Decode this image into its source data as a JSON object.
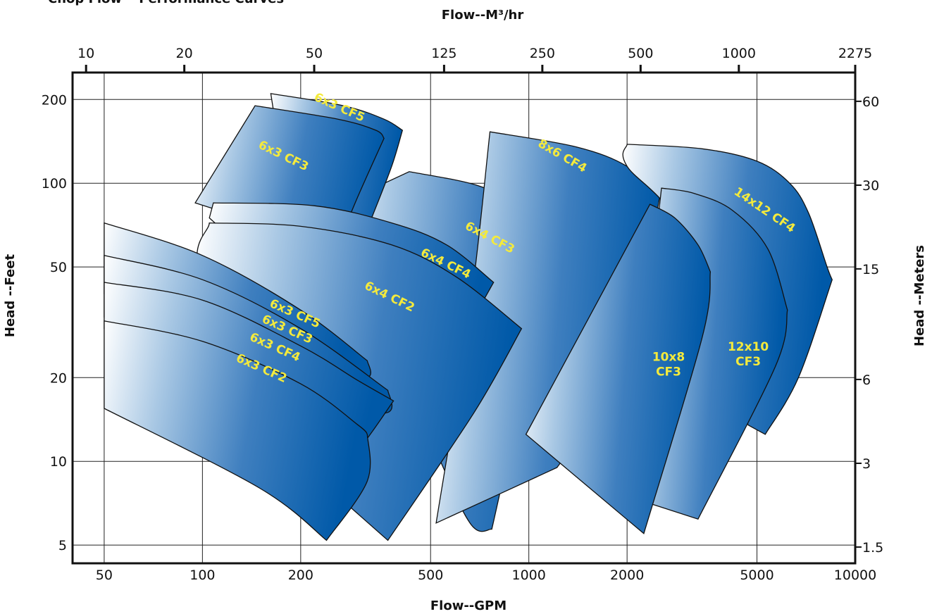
{
  "chart_data": {
    "type": "area",
    "title": "Chop Flow™ Performance Curves",
    "x_bottom": {
      "label": "Flow--GPM",
      "scale": "log",
      "range": [
        40,
        10000
      ],
      "ticks": [
        50,
        100,
        200,
        500,
        1000,
        2000,
        5000,
        10000
      ]
    },
    "x_top": {
      "label": "Flow--M³/hr",
      "ticks": [
        {
          "label": "10",
          "gpm": 44
        },
        {
          "label": "20",
          "gpm": 88
        },
        {
          "label": "50",
          "gpm": 220
        },
        {
          "label": "125",
          "gpm": 550
        },
        {
          "label": "250",
          "gpm": 1100
        },
        {
          "label": "500",
          "gpm": 2200
        },
        {
          "label": "1000",
          "gpm": 4400
        },
        {
          "label": "2275",
          "gpm": 10000
        }
      ]
    },
    "y_left": {
      "label": "Head --Feet",
      "scale": "log",
      "range": [
        4.3,
        250
      ],
      "ticks": [
        5,
        10,
        20,
        50,
        100,
        200
      ]
    },
    "y_right": {
      "label": "Head --Meters",
      "ticks": [
        {
          "label": "1.5",
          "ft": 4.92
        },
        {
          "label": "3",
          "ft": 9.84
        },
        {
          "label": "6",
          "ft": 19.7
        },
        {
          "label": "15",
          "ft": 49.2
        },
        {
          "label": "30",
          "ft": 98.4
        },
        {
          "label": "60",
          "ft": 197
        }
      ]
    },
    "grid": true,
    "series": [
      {
        "name": "6x4 CF3",
        "label_lines": [
          "6x4 CF3"
        ],
        "label_at": [
          750,
          62
        ],
        "label_angle": 28,
        "top": [
          [
            430,
            110
          ],
          [
            700,
            98
          ],
          [
            1000,
            80
          ],
          [
            1300,
            68
          ],
          [
            1500,
            61
          ]
        ],
        "right": [
          [
            1500,
            61
          ],
          [
            1270,
            40
          ],
          [
            1050,
            27
          ],
          [
            770,
            5.7
          ]
        ],
        "bottom": [
          [
            770,
            5.7
          ],
          [
            660,
            6.0
          ],
          [
            500,
            12
          ],
          [
            240,
            80
          ]
        ],
        "left": [
          [
            240,
            80
          ],
          [
            430,
            110
          ]
        ]
      },
      {
        "name": "6x3 CF5",
        "label_lines": [
          "6x3 CF5"
        ],
        "label_at": [
          260,
          182
        ],
        "label_angle": 24,
        "top": [
          [
            162,
            210
          ],
          [
            270,
            190
          ],
          [
            360,
            170
          ],
          [
            410,
            155
          ]
        ],
        "right": [
          [
            410,
            155
          ],
          [
            380,
            115
          ],
          [
            330,
            75
          ]
        ],
        "bottom": [
          [
            330,
            75
          ],
          [
            220,
            85
          ],
          [
            180,
            95
          ]
        ],
        "left": [
          [
            180,
            95
          ],
          [
            162,
            210
          ]
        ]
      },
      {
        "name": "6x3 CF3",
        "label_lines": [
          "6x3 CF3"
        ],
        "label_at": [
          175,
          122
        ],
        "label_angle": 26,
        "top": [
          [
            145,
            190
          ],
          [
            260,
            170
          ],
          [
            340,
            155
          ],
          [
            360,
            145
          ]
        ],
        "right": [
          [
            360,
            145
          ],
          [
            300,
            90
          ],
          [
            260,
            60
          ]
        ],
        "bottom": [
          [
            260,
            60
          ],
          [
            160,
            70
          ],
          [
            95,
            85
          ]
        ],
        "left": [
          [
            95,
            85
          ],
          [
            145,
            190
          ]
        ]
      },
      {
        "name": "8x6 CF4",
        "label_lines": [
          "8x6 CF4"
        ],
        "label_at": [
          1250,
          122
        ],
        "label_angle": 30,
        "top": [
          [
            760,
            153
          ],
          [
            1400,
            135
          ],
          [
            2000,
            115
          ],
          [
            2520,
            90
          ]
        ],
        "right": [
          [
            2520,
            90
          ],
          [
            2200,
            40
          ],
          [
            1650,
            16
          ],
          [
            1220,
            9.5
          ]
        ],
        "bottom": [
          [
            1220,
            9.5
          ],
          [
            520,
            6.0
          ]
        ],
        "left": [
          [
            520,
            6.0
          ],
          [
            660,
            35
          ],
          [
            760,
            153
          ]
        ]
      },
      {
        "name": "14x12 CF4",
        "label_lines": [
          "14x12  CF4"
        ],
        "label_at": [
          5200,
          78
        ],
        "label_angle": 34,
        "top": [
          [
            2000,
            138
          ],
          [
            3400,
            133
          ],
          [
            5000,
            120
          ],
          [
            6300,
            100
          ],
          [
            7200,
            78
          ],
          [
            8200,
            50
          ],
          [
            8500,
            45
          ]
        ],
        "right": [
          [
            8500,
            45
          ],
          [
            6700,
            20
          ],
          [
            5300,
            12.5
          ]
        ],
        "bottom": [
          [
            5300,
            12.5
          ],
          [
            4700,
            13.5
          ]
        ],
        "left": [
          [
            4700,
            13.5
          ],
          [
            3000,
            65
          ],
          [
            2000,
            115
          ],
          [
            2000,
            138
          ]
        ]
      },
      {
        "name": "12x10 CF3",
        "label_lines": [
          "12x10",
          "CF3"
        ],
        "label_at": [
          4700,
          25
        ],
        "label_angle": 0,
        "top": [
          [
            2550,
            96
          ],
          [
            3200,
            92
          ],
          [
            4200,
            80
          ],
          [
            5400,
            58
          ],
          [
            6200,
            35
          ]
        ],
        "right": [
          [
            6200,
            35
          ],
          [
            5700,
            22
          ],
          [
            3300,
            6.2
          ]
        ],
        "bottom": [
          [
            3300,
            6.2
          ],
          [
            2000,
            7.5
          ]
        ],
        "left": [
          [
            2000,
            7.5
          ],
          [
            2550,
            96
          ]
        ]
      },
      {
        "name": "10x8 CF3",
        "label_lines": [
          "10x8",
          "CF3"
        ],
        "label_at": [
          2680,
          23
        ],
        "label_angle": 0,
        "top": [
          [
            2350,
            84
          ],
          [
            2800,
            75
          ],
          [
            3300,
            60
          ],
          [
            3600,
            48
          ]
        ],
        "right": [
          [
            3600,
            48
          ],
          [
            3400,
            28
          ],
          [
            2250,
            5.5
          ]
        ],
        "bottom": [
          [
            2250,
            5.5
          ],
          [
            980,
            12.5
          ]
        ],
        "left": [
          [
            980,
            12.5
          ],
          [
            2350,
            84
          ]
        ]
      },
      {
        "name": "6x4 CF4",
        "label_lines": [
          "6x4 CF4"
        ],
        "label_at": [
          550,
          50
        ],
        "label_angle": 26,
        "top": [
          [
            108,
            85
          ],
          [
            220,
            83
          ],
          [
            380,
            72
          ],
          [
            560,
            60
          ],
          [
            780,
            44
          ]
        ],
        "right": [
          [
            780,
            44
          ],
          [
            640,
            30
          ],
          [
            470,
            20
          ]
        ],
        "bottom": [
          [
            470,
            20
          ],
          [
            300,
            25
          ],
          [
            105,
            75
          ]
        ],
        "left": [
          [
            105,
            75
          ],
          [
            108,
            85
          ]
        ]
      },
      {
        "name": "6x4 CF2",
        "label_lines": [
          "6x4 CF2"
        ],
        "label_at": [
          370,
          38
        ],
        "label_angle": 26,
        "top": [
          [
            105,
            72
          ],
          [
            200,
            70
          ],
          [
            380,
            60
          ],
          [
            600,
            46
          ],
          [
            950,
            30
          ]
        ],
        "right": [
          [
            950,
            30
          ],
          [
            680,
            15
          ],
          [
            370,
            5.2
          ]
        ],
        "bottom": [
          [
            370,
            5.2
          ],
          [
            250,
            7.8
          ]
        ],
        "left": [
          [
            250,
            7.8
          ],
          [
            102,
            42
          ],
          [
            105,
            72
          ]
        ]
      },
      {
        "name": "6x3 CF5",
        "label_lines": [
          "6x3 CF5"
        ],
        "label_at": [
          190,
          33
        ],
        "label_angle": 24,
        "top": [
          [
            50,
            72
          ],
          [
            100,
            55
          ],
          [
            200,
            35
          ],
          [
            320,
            23
          ]
        ],
        "right": [
          [
            320,
            23
          ],
          [
            320,
            20
          ],
          [
            230,
            20
          ]
        ],
        "bottom": [
          [
            230,
            20
          ],
          [
            50,
            40
          ]
        ],
        "left": [
          [
            50,
            40
          ],
          [
            50,
            72
          ]
        ]
      },
      {
        "name": "6x3 CF3",
        "label_lines": [
          "6x3 CF3"
        ],
        "label_at": [
          180,
          29
        ],
        "label_angle": 24,
        "top": [
          [
            50,
            55
          ],
          [
            100,
            45
          ],
          [
            200,
            30
          ],
          [
            370,
            18
          ]
        ],
        "right": [
          [
            370,
            18
          ],
          [
            370,
            15
          ],
          [
            250,
            15
          ]
        ],
        "bottom": [
          [
            250,
            15
          ],
          [
            50,
            33
          ]
        ],
        "left": [
          [
            50,
            33
          ],
          [
            50,
            55
          ]
        ]
      },
      {
        "name": "6x3 CF4",
        "label_lines": [
          "6x3 CF4"
        ],
        "label_at": [
          165,
          25
        ],
        "label_angle": 24,
        "top": [
          [
            50,
            44
          ],
          [
            100,
            38
          ],
          [
            200,
            26
          ],
          [
            300,
            19.5
          ],
          [
            385,
            16.5
          ]
        ],
        "right": [
          [
            385,
            16.5
          ],
          [
            300,
            11
          ],
          [
            250,
            9.5
          ]
        ],
        "bottom": [
          [
            250,
            9.5
          ],
          [
            50,
            30
          ]
        ],
        "left": [
          [
            50,
            30
          ],
          [
            50,
            44
          ]
        ]
      },
      {
        "name": "6x3 CF2",
        "label_lines": [
          "6x3 CF2"
        ],
        "label_at": [
          150,
          21
        ],
        "label_angle": 24,
        "top": [
          [
            50,
            32
          ],
          [
            100,
            27
          ],
          [
            200,
            19
          ],
          [
            300,
            13.5
          ],
          [
            320,
            12.5
          ]
        ],
        "right": [
          [
            320,
            12.5
          ],
          [
            320,
            8.5
          ],
          [
            240,
            5.2
          ]
        ],
        "bottom": [
          [
            240,
            5.2
          ],
          [
            150,
            8
          ],
          [
            50,
            15.5
          ]
        ],
        "left": [
          [
            50,
            15.5
          ],
          [
            50,
            32
          ]
        ]
      }
    ]
  }
}
